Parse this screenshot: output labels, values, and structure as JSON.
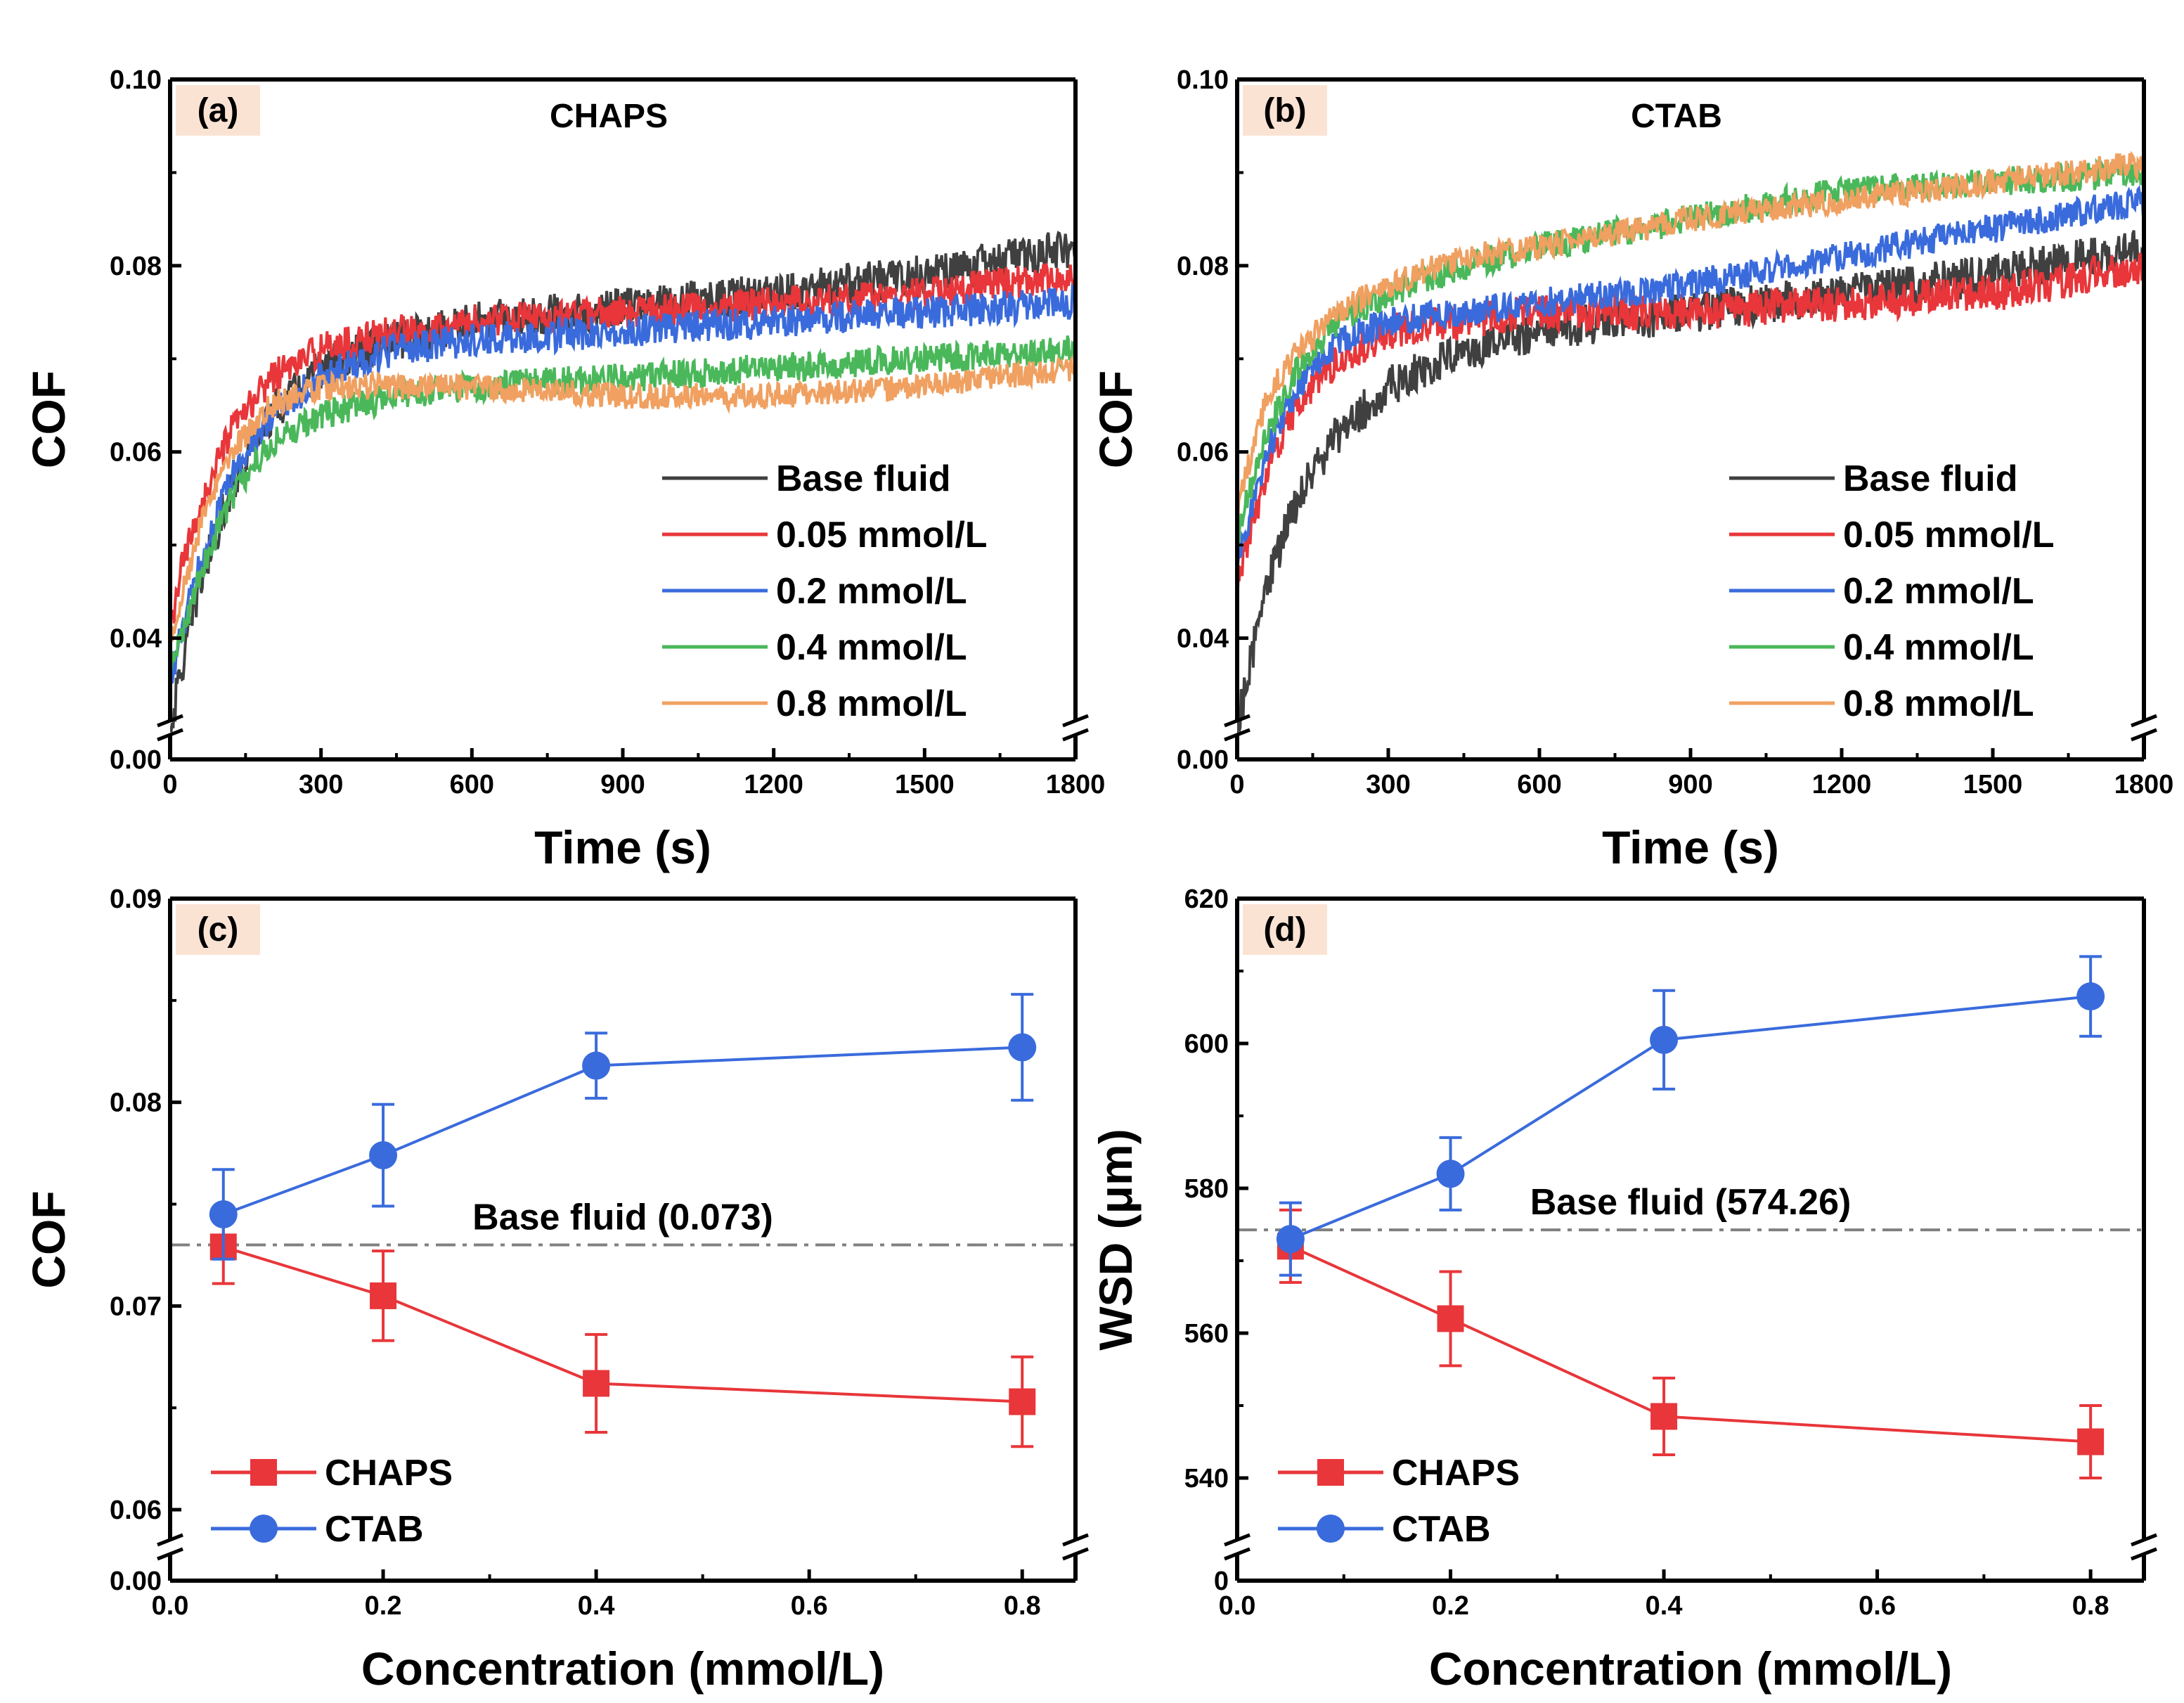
{
  "figure": {
    "panels": [
      "a",
      "b",
      "c",
      "d"
    ]
  },
  "chart_data": [
    {
      "id": "a",
      "type": "line",
      "tag": "(a)",
      "title": "CHAPS",
      "xlabel": "Time (s)",
      "ylabel": "COF",
      "xlim": [
        0,
        1800
      ],
      "ylim": [
        0.0,
        0.1
      ],
      "axis_break": "0.00 to 0.03",
      "xticks": [
        "0",
        "300",
        "600",
        "900",
        "1200",
        "1500",
        "1800"
      ],
      "yticks": [
        "0.00",
        "0.04",
        "0.06",
        "0.08",
        "0.10"
      ],
      "legend": "bottom-right",
      "series": [
        {
          "name": "Base fluid",
          "color": "#404040",
          "noise": 0.0022,
          "x": [
            0,
            20,
            60,
            120,
            200,
            300,
            450,
            600,
            900,
            1200,
            1500,
            1800
          ],
          "values": [
            0.03,
            0.036,
            0.046,
            0.056,
            0.064,
            0.069,
            0.072,
            0.074,
            0.0755,
            0.077,
            0.079,
            0.082
          ]
        },
        {
          "name": "0.05 mmol/L",
          "color": "#e8363a",
          "noise": 0.0018,
          "x": [
            0,
            20,
            60,
            120,
            200,
            300,
            450,
            600,
            900,
            1200,
            1500,
            1800
          ],
          "values": [
            0.04,
            0.047,
            0.054,
            0.062,
            0.068,
            0.071,
            0.073,
            0.074,
            0.075,
            0.076,
            0.077,
            0.079
          ]
        },
        {
          "name": "0.2 mmol/L",
          "color": "#3a6bdc",
          "noise": 0.0018,
          "x": [
            0,
            20,
            60,
            120,
            200,
            300,
            450,
            600,
            900,
            1200,
            1500,
            1800
          ],
          "values": [
            0.035,
            0.04,
            0.048,
            0.057,
            0.064,
            0.068,
            0.071,
            0.072,
            0.073,
            0.074,
            0.075,
            0.076
          ]
        },
        {
          "name": "0.4 mmol/L",
          "color": "#4ab85a",
          "noise": 0.0016,
          "x": [
            0,
            20,
            60,
            120,
            200,
            300,
            450,
            600,
            900,
            1200,
            1500,
            1800
          ],
          "values": [
            0.036,
            0.04,
            0.047,
            0.055,
            0.061,
            0.064,
            0.066,
            0.067,
            0.068,
            0.069,
            0.07,
            0.071
          ]
        },
        {
          "name": "0.8 mmol/L",
          "color": "#f0a060",
          "noise": 0.0014,
          "x": [
            0,
            20,
            60,
            120,
            200,
            300,
            450,
            600,
            900,
            1200,
            1500,
            1800
          ],
          "values": [
            0.04,
            0.044,
            0.052,
            0.06,
            0.065,
            0.067,
            0.067,
            0.067,
            0.066,
            0.066,
            0.067,
            0.069
          ]
        }
      ]
    },
    {
      "id": "b",
      "type": "line",
      "tag": "(b)",
      "title": "CTAB",
      "xlabel": "Time (s)",
      "ylabel": "COF",
      "xlim": [
        0,
        1800
      ],
      "ylim": [
        0.0,
        0.1
      ],
      "axis_break": "0.00 to 0.03",
      "xticks": [
        "0",
        "300",
        "600",
        "900",
        "1200",
        "1500",
        "1800"
      ],
      "yticks": [
        "0.00",
        "0.04",
        "0.06",
        "0.08",
        "0.10"
      ],
      "legend": "bottom-right",
      "series": [
        {
          "name": "Base fluid",
          "color": "#404040",
          "noise": 0.0022,
          "x": [
            0,
            20,
            60,
            120,
            200,
            300,
            450,
            600,
            900,
            1200,
            1500,
            1800
          ],
          "values": [
            0.03,
            0.036,
            0.046,
            0.055,
            0.062,
            0.067,
            0.071,
            0.073,
            0.075,
            0.077,
            0.079,
            0.082
          ]
        },
        {
          "name": "0.05 mmol/L",
          "color": "#e8363a",
          "noise": 0.002,
          "x": [
            0,
            20,
            60,
            120,
            200,
            300,
            450,
            600,
            900,
            1200,
            1500,
            1800
          ],
          "values": [
            0.045,
            0.05,
            0.058,
            0.065,
            0.07,
            0.073,
            0.074,
            0.075,
            0.075,
            0.076,
            0.077,
            0.08
          ]
        },
        {
          "name": "0.2 mmol/L",
          "color": "#3a6bdc",
          "noise": 0.0016,
          "x": [
            0,
            20,
            60,
            120,
            200,
            300,
            450,
            600,
            900,
            1200,
            1500,
            1800
          ],
          "values": [
            0.048,
            0.052,
            0.06,
            0.067,
            0.072,
            0.074,
            0.075,
            0.076,
            0.078,
            0.081,
            0.084,
            0.087
          ]
        },
        {
          "name": "0.4 mmol/L",
          "color": "#4ab85a",
          "noise": 0.0016,
          "x": [
            0,
            20,
            60,
            120,
            200,
            300,
            450,
            600,
            900,
            1200,
            1500,
            1800
          ],
          "values": [
            0.05,
            0.055,
            0.062,
            0.069,
            0.074,
            0.077,
            0.08,
            0.082,
            0.085,
            0.088,
            0.089,
            0.09
          ]
        },
        {
          "name": "0.8 mmol/L",
          "color": "#f0a060",
          "noise": 0.0014,
          "x": [
            0,
            20,
            60,
            120,
            200,
            300,
            450,
            600,
            900,
            1200,
            1500,
            1800
          ],
          "values": [
            0.054,
            0.058,
            0.066,
            0.071,
            0.075,
            0.078,
            0.081,
            0.082,
            0.085,
            0.087,
            0.089,
            0.091
          ]
        }
      ]
    },
    {
      "id": "c",
      "type": "line",
      "tag": "(c)",
      "xlabel": "Concentration (mmol/L)",
      "ylabel": "COF",
      "xlim": [
        0.0,
        0.85
      ],
      "ylim": [
        0.0,
        0.09
      ],
      "axis_break": "0.00 to 0.058",
      "xticks": [
        "0.0",
        "0.2",
        "0.4",
        "0.6",
        "0.8"
      ],
      "yticks": [
        "0.00",
        "0.06",
        "0.07",
        "0.08",
        "0.09"
      ],
      "legend": "bottom-left",
      "reference_line": {
        "label": "Base fluid (0.073)",
        "value": 0.073
      },
      "x": [
        0.05,
        0.2,
        0.4,
        0.8
      ],
      "series": [
        {
          "name": "CHAPS",
          "color": "#e8363a",
          "marker": "square",
          "values": [
            0.0729,
            0.0705,
            0.0662,
            0.0653
          ],
          "errors": [
            0.0018,
            0.0022,
            0.0024,
            0.0022
          ]
        },
        {
          "name": "CTAB",
          "color": "#3a6bdc",
          "marker": "circle",
          "values": [
            0.0745,
            0.0774,
            0.0818,
            0.0827
          ],
          "errors": [
            0.0022,
            0.0025,
            0.0016,
            0.0026
          ]
        }
      ]
    },
    {
      "id": "d",
      "type": "line",
      "tag": "(d)",
      "xlabel": "Concentration (mmol/L)",
      "ylabel": "WSD (μm)",
      "xlim": [
        0.0,
        0.85
      ],
      "ylim": [
        0,
        620
      ],
      "axis_break": "0 to 530",
      "xticks": [
        "0.0",
        "0.2",
        "0.4",
        "0.6",
        "0.8"
      ],
      "yticks": [
        "0",
        "540",
        "560",
        "580",
        "600",
        "620"
      ],
      "legend": "bottom-left",
      "reference_line": {
        "label": "Base fluid (574.26)",
        "value": 574.26
      },
      "x": [
        0.05,
        0.2,
        0.4,
        0.8
      ],
      "series": [
        {
          "name": "CHAPS",
          "color": "#e8363a",
          "marker": "square",
          "values": [
            572,
            562,
            548.5,
            545
          ],
          "errors": [
            5,
            6.5,
            5.3,
            5
          ]
        },
        {
          "name": "CTAB",
          "color": "#3a6bdc",
          "marker": "circle",
          "values": [
            573,
            582,
            600.5,
            606.5
          ],
          "errors": [
            5,
            5,
            6.8,
            5.5
          ]
        }
      ]
    }
  ]
}
